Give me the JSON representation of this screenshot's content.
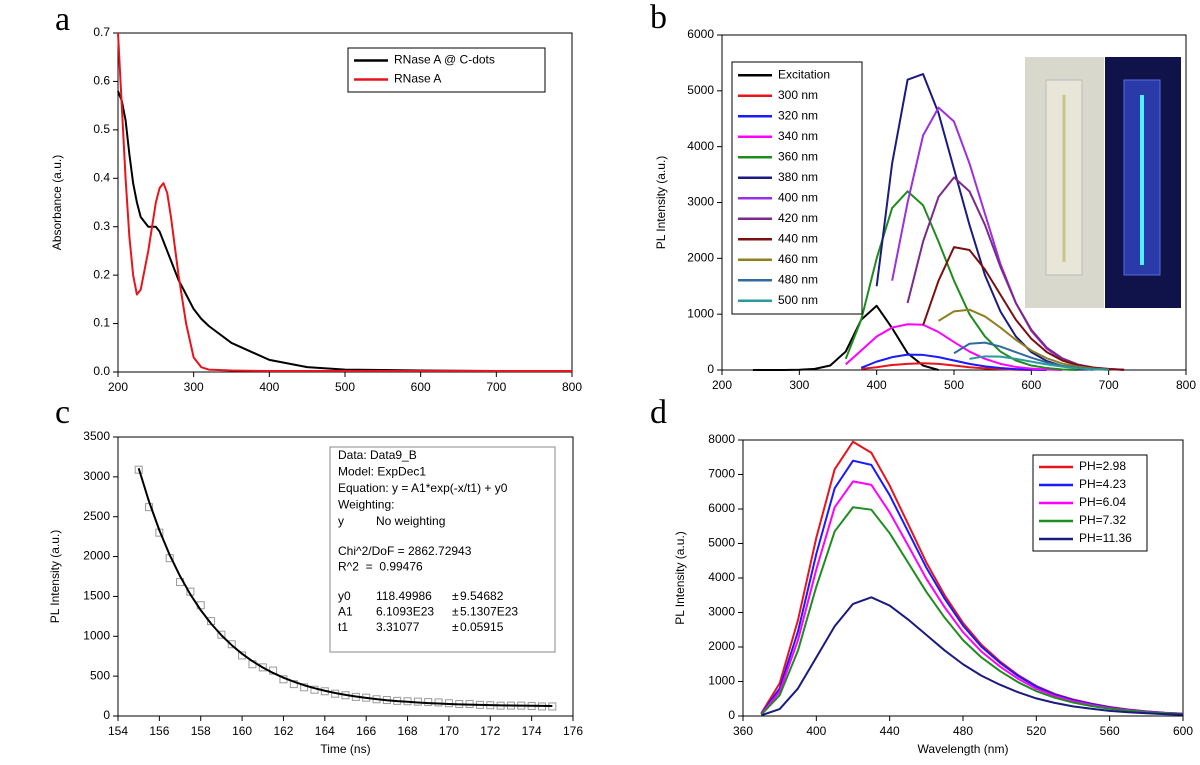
{
  "chart_data": [
    {
      "type": "line",
      "panel_label": "a",
      "y_label": "Absorbance (a.u.)",
      "x": [
        200,
        205,
        210,
        215,
        220,
        225,
        230,
        240,
        250,
        255,
        260,
        265,
        270,
        280,
        290,
        300,
        310,
        320,
        350,
        400,
        450,
        500,
        600,
        700,
        800
      ],
      "series": [
        {
          "name": "RNase A @ C-dots",
          "color": "#000000",
          "values": [
            0.58,
            0.56,
            0.52,
            0.45,
            0.39,
            0.35,
            0.32,
            0.3,
            0.3,
            0.29,
            0.27,
            0.25,
            0.23,
            0.19,
            0.16,
            0.13,
            0.11,
            0.095,
            0.06,
            0.025,
            0.01,
            0.005,
            0.003,
            0.002,
            0.002
          ]
        },
        {
          "name": "RNase A",
          "color": "#e8141b",
          "values": [
            0.7,
            0.55,
            0.4,
            0.28,
            0.2,
            0.16,
            0.17,
            0.25,
            0.35,
            0.38,
            0.39,
            0.37,
            0.32,
            0.2,
            0.1,
            0.03,
            0.01,
            0.005,
            0.003,
            0.002,
            0.002,
            0.002,
            0.002,
            0.002,
            0.002
          ]
        }
      ],
      "xlim": [
        200,
        800
      ],
      "xticks": [
        200,
        300,
        400,
        500,
        600,
        700,
        800
      ],
      "ylim": [
        0,
        0.7
      ],
      "yticks": [
        {
          "value": 0,
          "label": "0.0"
        },
        0.1,
        0.2,
        0.3,
        0.4,
        0.5,
        0.6,
        0.7
      ],
      "legend": "top-right"
    },
    {
      "type": "line",
      "panel_label": "b",
      "y_label": "PL Intensity (a.u.)",
      "x": [
        240,
        260,
        280,
        300,
        320,
        340,
        360,
        380,
        400,
        420,
        440,
        460,
        480,
        500,
        520,
        540,
        560,
        580,
        600,
        620,
        640,
        660,
        680,
        700,
        720,
        740,
        760,
        780,
        800
      ],
      "series": [
        {
          "name": "Excitation",
          "color": "#000000",
          "values": [
            0,
            0,
            0,
            5,
            20,
            80,
            330,
            900,
            1150,
            750,
            300,
            80,
            0,
            null,
            null,
            null,
            null,
            null,
            null,
            null,
            null,
            null,
            null,
            null,
            null,
            null,
            null,
            null,
            null
          ]
        },
        {
          "name": "300 nm",
          "color": "#e8141b",
          "values": [
            null,
            null,
            null,
            null,
            null,
            null,
            null,
            20,
            50,
            90,
            110,
            120,
            110,
            80,
            50,
            30,
            15,
            5,
            0,
            null,
            null,
            null,
            null,
            null,
            null,
            null,
            null,
            null,
            null
          ]
        },
        {
          "name": "320 nm",
          "color": "#1a1aff",
          "values": [
            null,
            null,
            null,
            null,
            null,
            null,
            null,
            40,
            150,
            230,
            275,
            270,
            230,
            170,
            110,
            65,
            35,
            15,
            5,
            0,
            null,
            null,
            null,
            null,
            null,
            null,
            null,
            null,
            null
          ]
        },
        {
          "name": "340 nm",
          "color": "#ff00ff",
          "values": [
            null,
            null,
            null,
            null,
            null,
            null,
            100,
            350,
            600,
            760,
            820,
            810,
            680,
            500,
            330,
            200,
            110,
            55,
            25,
            10,
            0,
            null,
            null,
            null,
            null,
            null,
            null,
            null,
            null
          ]
        },
        {
          "name": "360 nm",
          "color": "#1e8c1e",
          "values": [
            null,
            null,
            null,
            null,
            null,
            null,
            200,
            900,
            2000,
            2900,
            3200,
            2950,
            2300,
            1600,
            1000,
            600,
            330,
            170,
            80,
            35,
            10,
            0,
            null,
            null,
            null,
            null,
            null,
            null,
            null
          ]
        },
        {
          "name": "380 nm",
          "color": "#1a1a80",
          "values": [
            null,
            null,
            null,
            null,
            null,
            null,
            null,
            null,
            1500,
            3700,
            5200,
            5300,
            4600,
            3600,
            2600,
            1700,
            1050,
            600,
            320,
            160,
            70,
            25,
            5,
            null,
            null,
            null,
            null,
            null,
            null
          ]
        },
        {
          "name": "400 nm",
          "color": "#9a30e0",
          "values": [
            null,
            null,
            null,
            null,
            null,
            null,
            null,
            null,
            null,
            1600,
            3000,
            4200,
            4700,
            4450,
            3700,
            2800,
            1900,
            1200,
            700,
            380,
            190,
            90,
            40,
            15,
            0,
            null,
            null,
            null,
            null
          ]
        },
        {
          "name": "420 nm",
          "color": "#7b2a8a",
          "values": [
            null,
            null,
            null,
            null,
            null,
            null,
            null,
            null,
            null,
            null,
            1200,
            2300,
            3100,
            3450,
            3200,
            2600,
            1850,
            1200,
            720,
            400,
            210,
            100,
            45,
            20,
            5,
            null,
            null,
            null,
            null
          ]
        },
        {
          "name": "440 nm",
          "color": "#7a1010",
          "values": [
            null,
            null,
            null,
            null,
            null,
            null,
            null,
            null,
            null,
            null,
            null,
            800,
            1600,
            2200,
            2150,
            1800,
            1350,
            900,
            560,
            320,
            170,
            85,
            40,
            15,
            5,
            null,
            null,
            null,
            null
          ]
        },
        {
          "name": "460 nm",
          "color": "#8c8020",
          "values": [
            null,
            null,
            null,
            null,
            null,
            null,
            null,
            null,
            null,
            null,
            null,
            null,
            880,
            1050,
            1080,
            960,
            760,
            540,
            350,
            210,
            115,
            60,
            25,
            10,
            null,
            null,
            null,
            null,
            null
          ]
        },
        {
          "name": "480 nm",
          "color": "#2f6aa0",
          "values": [
            null,
            null,
            null,
            null,
            null,
            null,
            null,
            null,
            null,
            null,
            null,
            null,
            null,
            300,
            470,
            490,
            420,
            320,
            220,
            135,
            75,
            38,
            15,
            5,
            null,
            null,
            null,
            null,
            null
          ]
        },
        {
          "name": "500 nm",
          "color": "#2a9a9a",
          "values": [
            null,
            null,
            null,
            null,
            null,
            null,
            null,
            null,
            null,
            null,
            null,
            null,
            null,
            null,
            200,
            245,
            240,
            200,
            150,
            100,
            60,
            30,
            12,
            5,
            null,
            null,
            null,
            null,
            null
          ]
        }
      ],
      "xlim": [
        200,
        800
      ],
      "xticks": [
        200,
        300,
        400,
        500,
        600,
        700,
        800
      ],
      "ylim": [
        0,
        6000
      ],
      "yticks": [
        0,
        1000,
        2000,
        3000,
        4000,
        5000,
        6000
      ],
      "legend": "top-left"
    },
    {
      "type": "scatter",
      "panel_label": "c",
      "x_label": "Time (ns)",
      "y_label": "PL Intensity (a.u.)",
      "x": [
        155,
        155.5,
        156,
        156.5,
        157,
        157.5,
        158,
        158.5,
        159,
        159.5,
        160,
        160.5,
        161,
        161.5,
        162,
        162.5,
        163,
        163.5,
        164,
        164.5,
        165,
        165.5,
        166,
        166.5,
        167,
        167.5,
        168,
        168.5,
        169,
        169.5,
        170,
        170.5,
        171,
        171.5,
        172,
        172.5,
        173,
        173.5,
        174,
        174.5,
        175
      ],
      "series": [
        {
          "type": "scatter",
          "color": "#999999",
          "values": [
            3090,
            2620,
            2300,
            1980,
            1680,
            1560,
            1390,
            1190,
            1020,
            900,
            760,
            650,
            610,
            570,
            460,
            400,
            360,
            330,
            310,
            280,
            260,
            240,
            230,
            210,
            200,
            190,
            185,
            180,
            175,
            170,
            160,
            150,
            150,
            140,
            135,
            130,
            130,
            130,
            125,
            120,
            120
          ]
        },
        {
          "type": "line",
          "color": "#000000",
          "values": [
            3108,
            2690,
            2330,
            2020,
            1754,
            1525,
            1328,
            1159,
            1013,
            888,
            780,
            688,
            608,
            540,
            481,
            430,
            386,
            349,
            317,
            289,
            265,
            245,
            227,
            212,
            198,
            187,
            178,
            169,
            162,
            156,
            151,
            146,
            142,
            139,
            136,
            134,
            132,
            130,
            128,
            127,
            126
          ]
        }
      ],
      "xlim": [
        154,
        176
      ],
      "xticks": [
        154,
        156,
        158,
        160,
        162,
        164,
        166,
        168,
        170,
        172,
        174,
        176
      ],
      "ylim": [
        0,
        3500
      ],
      "yticks": [
        0,
        500,
        1000,
        1500,
        2000,
        2500,
        3000,
        3500
      ],
      "fit_box": {
        "lines": [
          "Data: Data9_B",
          "Model: ExpDec1",
          "Equation: y = A1*exp(-x/t1) + y0",
          "Weighting:"
        ],
        "weighting": [
          "y",
          "No weighting"
        ],
        "stats": [
          "Chi^2/DoF = 2862.72943",
          "R^2  =  0.99476"
        ],
        "params": [
          [
            "y0",
            "118.49986",
            "±",
            "9.54682"
          ],
          [
            "A1",
            "6.1093E23",
            "±",
            "5.1307E23"
          ],
          [
            "t1",
            "3.31077",
            "±",
            "0.05915"
          ]
        ]
      }
    },
    {
      "type": "line",
      "panel_label": "d",
      "x_label": "Wavelength (nm)",
      "y_label": "PL Intensity (a.u.)",
      "x": [
        370,
        380,
        390,
        400,
        410,
        420,
        430,
        440,
        450,
        460,
        470,
        480,
        490,
        500,
        510,
        520,
        530,
        540,
        550,
        560,
        570,
        580,
        590,
        600
      ],
      "series": [
        {
          "name": "PH=2.98",
          "color": "#e8141b",
          "values": [
            80,
            950,
            2780,
            5170,
            7150,
            7950,
            7630,
            6680,
            5570,
            4450,
            3500,
            2700,
            2070,
            1590,
            1190,
            870,
            640,
            480,
            360,
            260,
            190,
            135,
            95,
            70
          ]
        },
        {
          "name": "PH=4.23",
          "color": "#1a1aff",
          "values": [
            60,
            800,
            2450,
            4700,
            6600,
            7400,
            7280,
            6400,
            5350,
            4300,
            3400,
            2620,
            2010,
            1550,
            1160,
            850,
            620,
            460,
            350,
            250,
            180,
            130,
            90,
            65
          ]
        },
        {
          "name": "PH=6.04",
          "color": "#ff00ff",
          "values": [
            50,
            700,
            2200,
            4250,
            6050,
            6800,
            6700,
            5900,
            4950,
            3980,
            3150,
            2430,
            1870,
            1440,
            1080,
            790,
            580,
            430,
            320,
            230,
            170,
            120,
            85,
            60
          ]
        },
        {
          "name": "PH=7.32",
          "color": "#1e8c1e",
          "values": [
            40,
            600,
            1900,
            3750,
            5350,
            6050,
            5980,
            5300,
            4450,
            3600,
            2850,
            2200,
            1700,
            1310,
            980,
            720,
            530,
            390,
            290,
            210,
            155,
            110,
            78,
            55
          ]
        },
        {
          "name": "PH=11.36",
          "color": "#1a1a80",
          "values": [
            20,
            200,
            800,
            1700,
            2600,
            3250,
            3440,
            3200,
            2800,
            2350,
            1900,
            1500,
            1170,
            910,
            690,
            510,
            380,
            280,
            210,
            150,
            110,
            80,
            55,
            40
          ]
        }
      ],
      "xlim": [
        360,
        600
      ],
      "xticks": [
        360,
        400,
        440,
        480,
        520,
        560,
        600
      ],
      "ylim": [
        0,
        8000
      ],
      "yticks": [
        0,
        1000,
        2000,
        3000,
        4000,
        5000,
        6000,
        7000,
        8000
      ],
      "legend": "top-right"
    }
  ]
}
